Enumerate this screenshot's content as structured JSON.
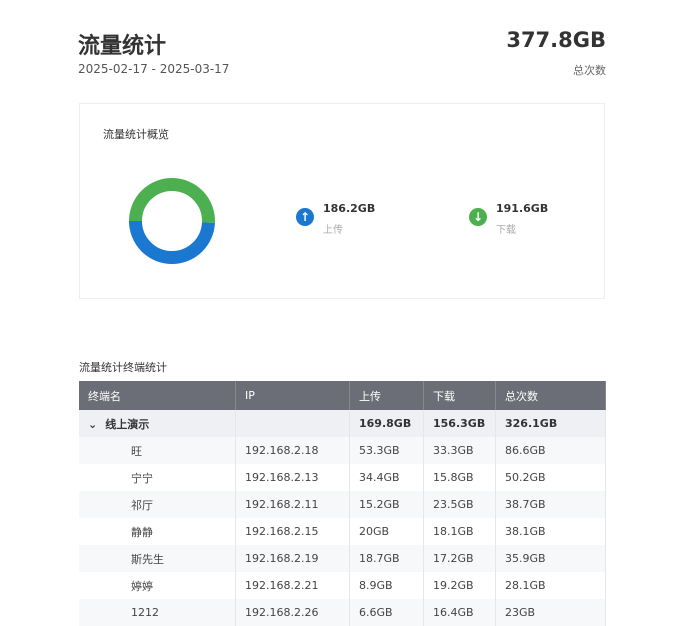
{
  "header": {
    "title": "流量统计",
    "date_range": "2025-02-17 - 2025-03-17",
    "total_value": "377.8GB",
    "total_label": "总次数"
  },
  "overview": {
    "title": "流量统计概览",
    "upload": {
      "value": "186.2GB",
      "label": "上传",
      "color": "#1a78d0",
      "icon": "arrow-up-icon"
    },
    "download": {
      "value": "191.6GB",
      "label": "下载",
      "color": "#4caf50",
      "icon": "arrow-down-icon"
    }
  },
  "table": {
    "title": "流量统计终端统计",
    "columns": [
      "终端名",
      "IP",
      "上传",
      "下载",
      "总次数"
    ],
    "group": {
      "name": "线上演示",
      "upload": "169.8GB",
      "download": "156.3GB",
      "total": "326.1GB"
    },
    "rows": [
      [
        "旺",
        "192.168.2.18",
        "53.3GB",
        "33.3GB",
        "86.6GB"
      ],
      [
        "宁宁",
        "192.168.2.13",
        "34.4GB",
        "15.8GB",
        "50.2GB"
      ],
      [
        "祁厅",
        "192.168.2.11",
        "15.2GB",
        "23.5GB",
        "38.7GB"
      ],
      [
        "静静",
        "192.168.2.15",
        "20GB",
        "18.1GB",
        "38.1GB"
      ],
      [
        "斯先生",
        "192.168.2.19",
        "18.7GB",
        "17.2GB",
        "35.9GB"
      ],
      [
        "婷婷",
        "192.168.2.21",
        "8.9GB",
        "19.2GB",
        "28.1GB"
      ],
      [
        "1212",
        "192.168.2.26",
        "6.6GB",
        "16.4GB",
        "23GB"
      ]
    ]
  }
}
